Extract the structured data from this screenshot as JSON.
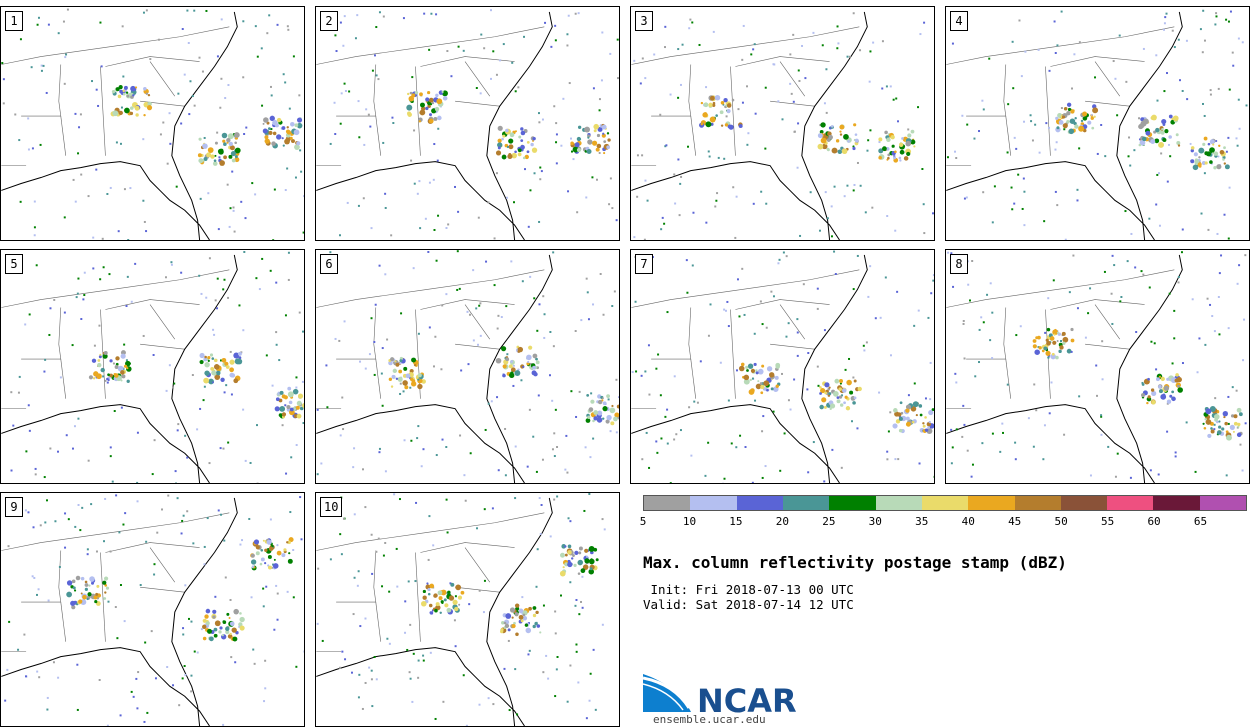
{
  "panels": [
    {
      "label": "1"
    },
    {
      "label": "2"
    },
    {
      "label": "3"
    },
    {
      "label": "4"
    },
    {
      "label": "5"
    },
    {
      "label": "6"
    },
    {
      "label": "7"
    },
    {
      "label": "8"
    },
    {
      "label": "9"
    },
    {
      "label": "10"
    }
  ],
  "colorbar": {
    "colors": [
      "#a0a0a0",
      "#b4bff0",
      "#5a64d6",
      "#4a9696",
      "#008000",
      "#b8dab8",
      "#eadb6a",
      "#eaa820",
      "#b47d2d",
      "#8a5238",
      "#ee5080",
      "#6a1838",
      "#b050b0"
    ],
    "ticks": [
      "5",
      "10",
      "15",
      "20",
      "25",
      "30",
      "35",
      "40",
      "45",
      "50",
      "55",
      "60",
      "65"
    ]
  },
  "title": "Max. column reflectivity postage stamp (dBZ)",
  "init": " Init: Fri 2018-07-13 00 UTC",
  "valid": "Valid: Sat 2018-07-14 12 UTC",
  "logo": {
    "text": "NCAR",
    "url": "ensemble.ucar.edu"
  }
}
